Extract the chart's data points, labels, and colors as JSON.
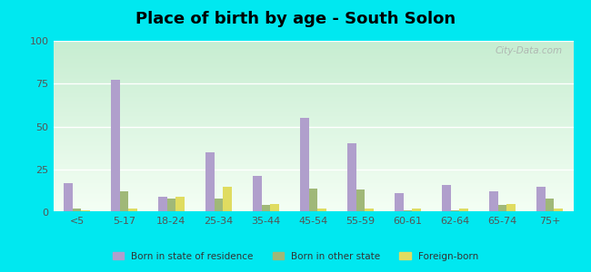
{
  "title": "Place of birth by age - South Solon",
  "categories": [
    "<5",
    "5-17",
    "18-24",
    "25-34",
    "35-44",
    "45-54",
    "55-59",
    "60-61",
    "62-64",
    "65-74",
    "75+"
  ],
  "born_in_state": [
    17,
    77,
    9,
    35,
    21,
    55,
    40,
    11,
    16,
    12,
    15
  ],
  "born_other_state": [
    2,
    12,
    8,
    8,
    4,
    14,
    13,
    1,
    1,
    4,
    8
  ],
  "foreign_born": [
    1,
    2,
    9,
    15,
    5,
    2,
    2,
    2,
    2,
    5,
    2
  ],
  "bar_color_state": "#b09fcc",
  "bar_color_other": "#a0b878",
  "bar_color_foreign": "#e0dc60",
  "outer_bg": "#00e8f0",
  "ylim": [
    0,
    100
  ],
  "yticks": [
    0,
    25,
    50,
    75,
    100
  ],
  "legend_labels": [
    "Born in state of residence",
    "Born in other state",
    "Foreign-born"
  ],
  "title_fontsize": 13,
  "watermark": "City-Data.com"
}
